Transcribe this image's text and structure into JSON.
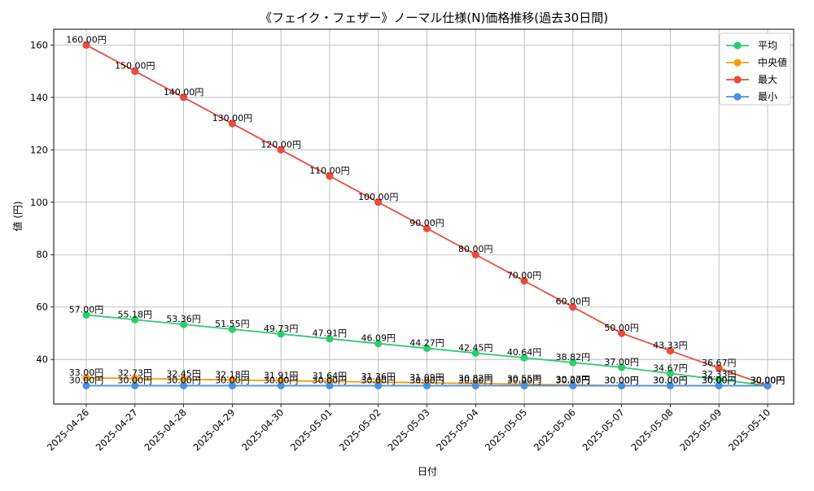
{
  "chart_data": {
    "type": "line",
    "title": "《フェイク・フェザー》ノーマル仕様(N)価格推移(過去30日間)",
    "xlabel": "日付",
    "ylabel": "値 (円)",
    "ylim": [
      23,
      166
    ],
    "yticks": [
      40,
      60,
      80,
      100,
      120,
      140,
      160
    ],
    "grid": true,
    "legend_position": "top-right",
    "label_suffix": "円",
    "categories": [
      "2025-04-26",
      "2025-04-27",
      "2025-04-28",
      "2025-04-29",
      "2025-04-30",
      "2025-05-01",
      "2025-05-02",
      "2025-05-03",
      "2025-05-04",
      "2025-05-05",
      "2025-05-06",
      "2025-05-07",
      "2025-05-08",
      "2025-05-09",
      "2025-05-10"
    ],
    "series": [
      {
        "name": "平均",
        "color": "#2ecc71",
        "values": [
          57.0,
          55.18,
          53.36,
          51.55,
          49.73,
          47.91,
          46.09,
          44.27,
          42.45,
          40.64,
          38.82,
          37.0,
          34.67,
          32.33,
          30.0
        ]
      },
      {
        "name": "中央値",
        "color": "#f39c12",
        "values": [
          33.0,
          32.73,
          32.45,
          32.18,
          31.91,
          31.64,
          31.36,
          31.09,
          30.82,
          30.55,
          30.27,
          30.0,
          30.0,
          30.0,
          30.0
        ]
      },
      {
        "name": "最大",
        "color": "#e74c3c",
        "values": [
          160.0,
          150.0,
          140.0,
          130.0,
          120.0,
          110.0,
          100.0,
          90.0,
          80.0,
          70.0,
          60.0,
          50.0,
          43.33,
          36.67,
          30.0
        ]
      },
      {
        "name": "最小",
        "color": "#4a90e2",
        "values": [
          30.0,
          30.0,
          30.0,
          30.0,
          30.0,
          30.0,
          30.0,
          30.0,
          30.0,
          30.0,
          30.0,
          30.0,
          30.0,
          30.0,
          30.0
        ]
      }
    ]
  }
}
